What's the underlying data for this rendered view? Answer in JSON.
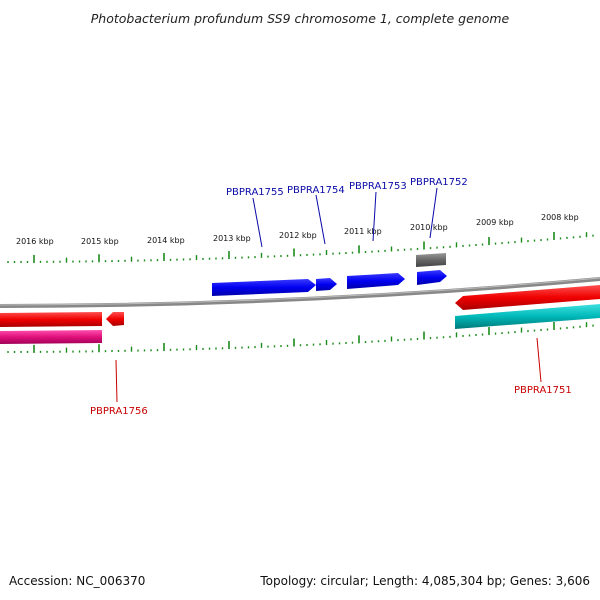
{
  "title": "Photobacterium profundum SS9 chromosome 1, complete genome",
  "scale_labels": [
    "2016 kbp",
    "2015 kbp",
    "2014 kbp",
    "2013 kbp",
    "2012 kbp",
    "2011 kbp",
    "2010 kbp",
    "2009 kbp",
    "2008 kbp"
  ],
  "genes": {
    "forward": [
      "PBPRA1755",
      "PBPRA1754",
      "PBPRA1753",
      "PBPRA1752"
    ],
    "reverse": [
      "PBPRA1756",
      "PBPRA1751"
    ]
  },
  "footer": {
    "accession": "Accession: NC_006370",
    "summary": "Topology: circular; Length: 4,085,304 bp; Genes: 3,606"
  },
  "colors": {
    "forward_gene": "#0000ee",
    "reverse_gene": "#ee0000",
    "pseudo_gene": "#666666",
    "rna_track": "#e0107a",
    "teal_track": "#00b8b8",
    "tick": "#1a8a1a",
    "backbone": "#888888"
  }
}
